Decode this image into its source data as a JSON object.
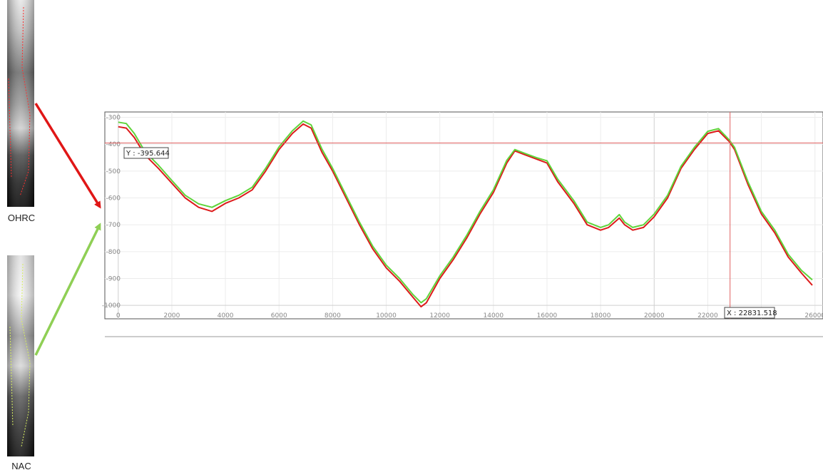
{
  "images": {
    "top_label": "OHRC",
    "bottom_label": "NAC"
  },
  "crosshair": {
    "x_value": 22831.518,
    "y_value": -395.644,
    "x_text": "X : 22831.518",
    "y_text": "Y : -395.644",
    "color": "#e06060"
  },
  "colors": {
    "ohrc": "#dd1b1b",
    "nac": "#5fd43b",
    "arrow_red": "#e01616",
    "arrow_green": "#8fcf55"
  },
  "chart_data": {
    "type": "line",
    "xlim": [
      -500,
      26300
    ],
    "ylim": [
      -1050,
      -280
    ],
    "x_ticks": [
      0,
      2000,
      4000,
      6000,
      8000,
      10000,
      12000,
      14000,
      16000,
      18000,
      20000,
      22000,
      24000,
      26000
    ],
    "y_ticks": [
      -300,
      -400,
      -500,
      -600,
      -700,
      -800,
      -900,
      -1000
    ],
    "grid": true,
    "series": [
      {
        "key": "ohrc",
        "color": "#dd1b1b",
        "x": [
          0,
          300,
          600,
          1000,
          1500,
          2000,
          2500,
          3000,
          3500,
          4000,
          4500,
          5000,
          5500,
          6000,
          6500,
          6900,
          7200,
          7600,
          8000,
          8500,
          9000,
          9500,
          10000,
          10500,
          11000,
          11300,
          11500,
          12000,
          12500,
          13000,
          13500,
          14000,
          14500,
          14800,
          15200,
          15600,
          16000,
          16400,
          17000,
          17500,
          18000,
          18300,
          18700,
          18900,
          19200,
          19600,
          20000,
          20500,
          21000,
          21500,
          22000,
          22400,
          22800,
          23000,
          23500,
          24000,
          24500,
          25000,
          25500,
          25900
        ],
        "y": [
          -335,
          -340,
          -375,
          -440,
          -490,
          -545,
          -600,
          -635,
          -650,
          -620,
          -600,
          -570,
          -500,
          -420,
          -360,
          -325,
          -340,
          -430,
          -500,
          -600,
          -700,
          -790,
          -860,
          -910,
          -970,
          -1005,
          -990,
          -900,
          -830,
          -750,
          -660,
          -580,
          -470,
          -425,
          -440,
          -455,
          -470,
          -540,
          -620,
          -700,
          -720,
          -710,
          -675,
          -700,
          -720,
          -710,
          -670,
          -600,
          -490,
          -420,
          -360,
          -350,
          -390,
          -420,
          -550,
          -660,
          -730,
          -820,
          -880,
          -925
        ]
      },
      {
        "key": "nac",
        "color": "#5fd43b",
        "x": [
          0,
          300,
          600,
          1000,
          1500,
          2000,
          2500,
          3000,
          3500,
          4000,
          4500,
          5000,
          5500,
          6000,
          6500,
          6900,
          7200,
          7600,
          8000,
          8500,
          9000,
          9500,
          10000,
          10500,
          11000,
          11300,
          11500,
          12000,
          12500,
          13000,
          13500,
          14000,
          14500,
          14800,
          15200,
          15600,
          16000,
          16400,
          17000,
          17500,
          18000,
          18300,
          18700,
          18900,
          19200,
          19600,
          20000,
          20500,
          21000,
          21500,
          22000,
          22400,
          22800,
          23000,
          23500,
          24000,
          24500,
          25000,
          25500,
          25900
        ],
        "y": [
          -318,
          -323,
          -360,
          -428,
          -478,
          -535,
          -590,
          -622,
          -635,
          -610,
          -590,
          -560,
          -490,
          -410,
          -350,
          -314,
          -328,
          -418,
          -490,
          -590,
          -690,
          -780,
          -850,
          -900,
          -960,
          -990,
          -975,
          -890,
          -820,
          -740,
          -650,
          -570,
          -460,
          -420,
          -435,
          -450,
          -462,
          -530,
          -610,
          -690,
          -710,
          -700,
          -662,
          -690,
          -710,
          -700,
          -660,
          -590,
          -482,
          -412,
          -352,
          -342,
          -384,
          -412,
          -540,
          -650,
          -720,
          -810,
          -870,
          -905
        ]
      }
    ]
  }
}
